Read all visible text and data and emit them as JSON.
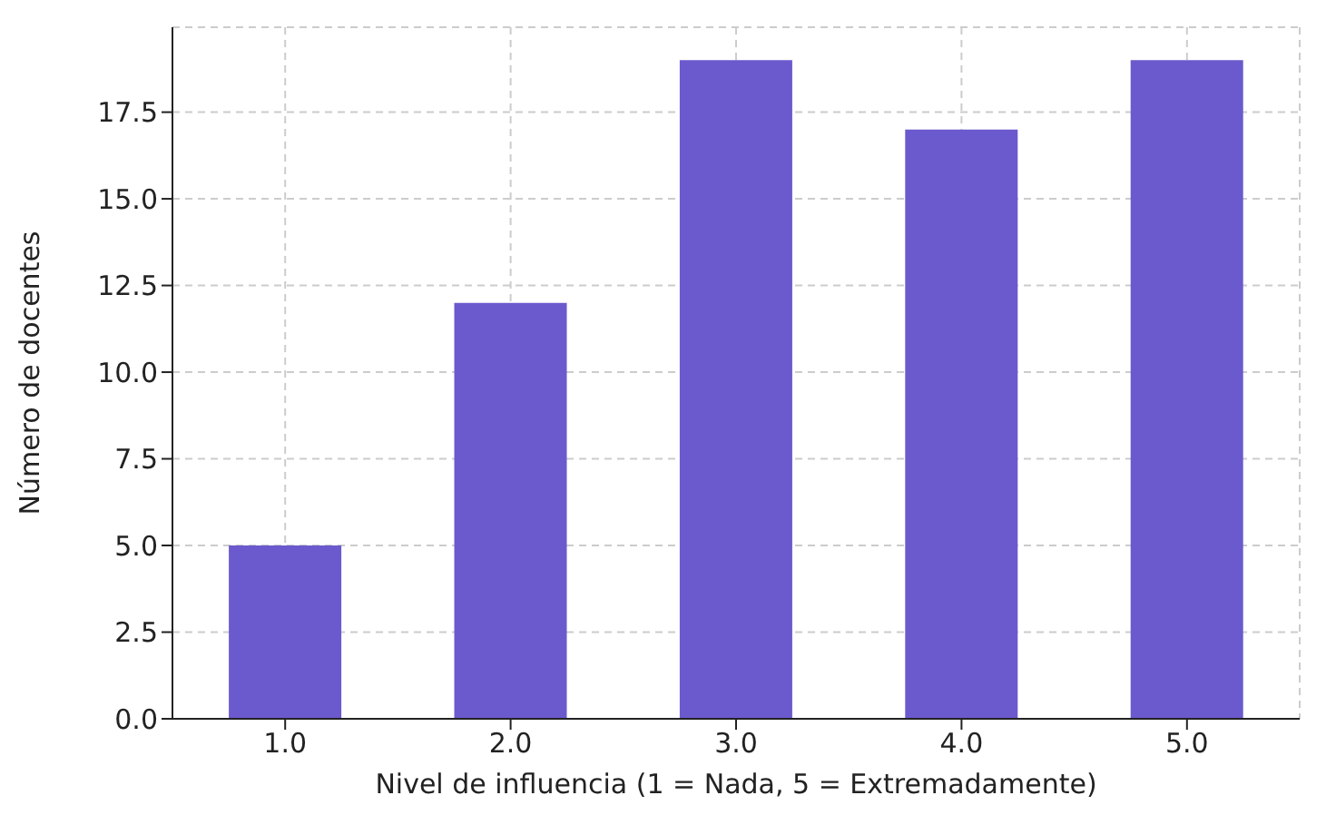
{
  "chart_data": {
    "type": "bar",
    "xlabel": "Nivel de influencia (1 = Nada, 5 = Extremadamente)",
    "ylabel": "Número de docentes",
    "categories": [
      "1.0",
      "2.0",
      "3.0",
      "4.0",
      "5.0"
    ],
    "values": [
      5,
      12,
      19,
      17,
      19
    ],
    "color": "#6a5acd",
    "ylim": [
      0,
      19.95
    ],
    "yticks": [
      {
        "value": 0,
        "label": "0.0"
      },
      {
        "value": 2.5,
        "label": "2.5"
      },
      {
        "value": 5,
        "label": "5.0"
      },
      {
        "value": 7.5,
        "label": "7.5"
      },
      {
        "value": 10,
        "label": "10.0"
      },
      {
        "value": 12.5,
        "label": "12.5"
      },
      {
        "value": 15,
        "label": "15.0"
      },
      {
        "value": 17.5,
        "label": "17.5"
      }
    ],
    "grid": true
  }
}
